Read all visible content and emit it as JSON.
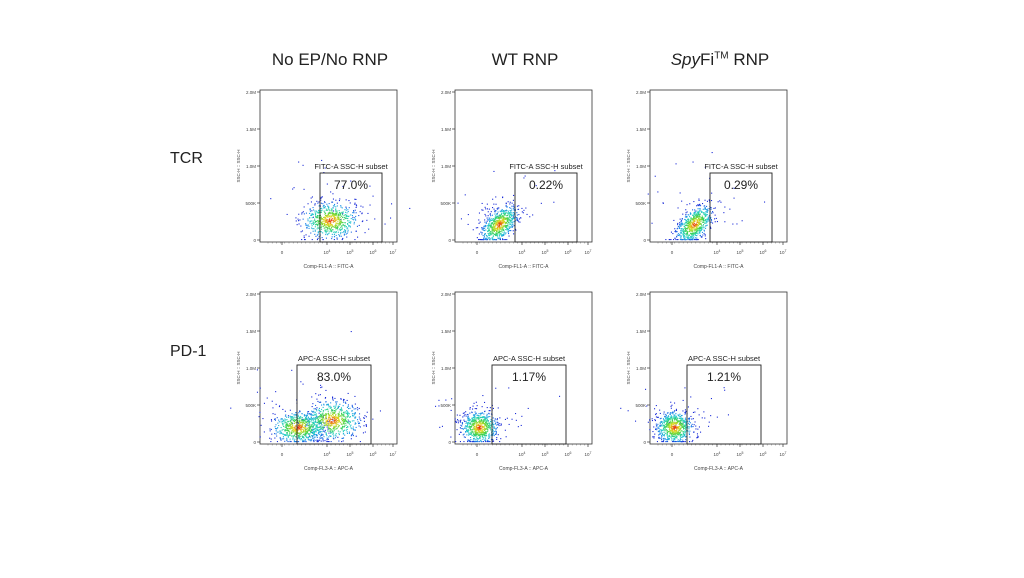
{
  "columns": [
    {
      "title": "No EP/No RNP"
    },
    {
      "title_italic": "Spy",
      "title": "WT RNP"
    },
    {
      "title_italic": "Spy",
      "title_main": "Fi",
      "title_sup": "TM",
      "title_tail": " RNP"
    }
  ],
  "rows": [
    {
      "label": "TCR"
    },
    {
      "label": "PD-1"
    }
  ],
  "chart_data": [
    {
      "type": "scatter",
      "row": "TCR",
      "column": "No EP/No RNP",
      "gate_label": "FITC-A SSC-H subset",
      "gate_percent": "77.0%",
      "xlabel": "Comp-FL1-A :: FITC-A",
      "ylabel": "SSC-H :: SSC-H"
    },
    {
      "type": "scatter",
      "row": "TCR",
      "column": "WT RNP",
      "gate_label": "FITC-A SSC-H subset",
      "gate_percent": "0.22%",
      "xlabel": "Comp-FL1-A :: FITC-A",
      "ylabel": "SSC-H :: SSC-H"
    },
    {
      "type": "scatter",
      "row": "TCR",
      "column": "SpyFi RNP",
      "gate_label": "FITC-A SSC-H subset",
      "gate_percent": "0.29%",
      "xlabel": "Comp-FL1-A :: FITC-A",
      "ylabel": "SSC-H :: SSC-H"
    },
    {
      "type": "scatter",
      "row": "PD-1",
      "column": "No EP/No RNP",
      "gate_label": "APC-A SSC-H subset",
      "gate_percent": "83.0%",
      "xlabel": "Comp-FL3-A :: APC-A",
      "ylabel": "SSC-H :: SSC-H"
    },
    {
      "type": "scatter",
      "row": "PD-1",
      "column": "WT RNP",
      "gate_label": "APC-A SSC-H subset",
      "gate_percent": "1.17%",
      "xlabel": "Comp-FL3-A :: APC-A",
      "ylabel": "SSC-H :: SSC-H"
    },
    {
      "type": "scatter",
      "row": "PD-1",
      "column": "SpyFi RNP",
      "gate_label": "APC-A SSC-H subset",
      "gate_percent": "1.21%",
      "xlabel": "Comp-FL3-A :: APC-A",
      "ylabel": "SSC-H :: SSC-H"
    }
  ],
  "axes": {
    "y_ticks": [
      "0",
      "500K",
      "1.0M",
      "1.5M",
      "2.0M"
    ],
    "y_range": [
      0,
      2000000
    ],
    "x_ticks": [
      {
        "base": "0",
        "exp": ""
      },
      {
        "base": "10",
        "exp": "4"
      },
      {
        "base": "10",
        "exp": "5"
      },
      {
        "base": "10",
        "exp": "6"
      },
      {
        "base": "10",
        "exp": "7"
      }
    ],
    "x_scale": "biexponential"
  },
  "colors": {
    "density_low": "#1a2bd8",
    "density_mid": "#22d0c8",
    "density_high": "#e81c10"
  }
}
